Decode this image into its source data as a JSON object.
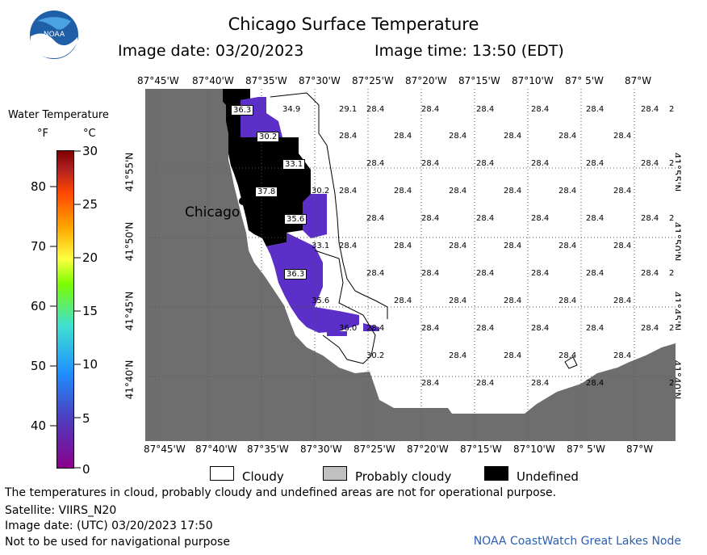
{
  "header": {
    "title": "Chicago Surface Temperature",
    "image_date": "Image date: 03/20/2023",
    "image_time": "Image time: 13:50 (EDT)"
  },
  "logo": {
    "text": "NOAA"
  },
  "legend": {
    "title": "Water Temperature",
    "unit_f": "°F",
    "unit_c": "°C",
    "f_ticks": [
      "80",
      "70",
      "60",
      "50",
      "40"
    ],
    "c_ticks": [
      "30",
      "25",
      "20",
      "15",
      "10",
      "5",
      "0"
    ],
    "colors": [
      "#8b008b",
      "#4b3fc0",
      "#1e90ff",
      "#40e0d0",
      "#7cfc00",
      "#ffff40",
      "#ffa500",
      "#ff4500",
      "#b22222",
      "#800000"
    ]
  },
  "map": {
    "lon_labels": [
      "87°45'W",
      "87°40'W",
      "87°35'W",
      "87°30'W",
      "87°25'W",
      "87°20'W",
      "87°15'W",
      "87°10'W",
      "87° 5'W",
      "87°W"
    ],
    "lat_labels": [
      "41°55'N",
      "41°50'N",
      "41°45'N",
      "41°40'N"
    ],
    "city": "Chicago",
    "temp_labels": [
      "36.3",
      "34.9",
      "29.1",
      "30.2",
      "33.1",
      "37.8",
      "30.2",
      "35.6",
      "33.1",
      "36.3",
      "35.6",
      "36.0",
      "30.2",
      "28.4",
      "2"
    ],
    "colors": {
      "land": "#6e6e6e",
      "water": "#ffffff",
      "undefined": "#000000",
      "warm_water": "#5b2fc8"
    }
  },
  "key": {
    "cloudy": "Cloudy",
    "probably_cloudy": "Probably cloudy",
    "undefined": "Undefined",
    "colors": {
      "cloudy": "#ffffff",
      "probably_cloudy": "#c0c0c0",
      "undefined": "#000000"
    }
  },
  "footer": {
    "disclaimer": "The temperatures in cloud, probably cloudy and undefined areas are not for operational purpose.",
    "satellite": "Satellite: VIIRS_N20",
    "utc_date": "Image date: (UTC) 03/20/2023  17:50",
    "nav_warning": "Not to be used for navigational purpose",
    "credit": "NOAA CoastWatch Great Lakes Node"
  }
}
